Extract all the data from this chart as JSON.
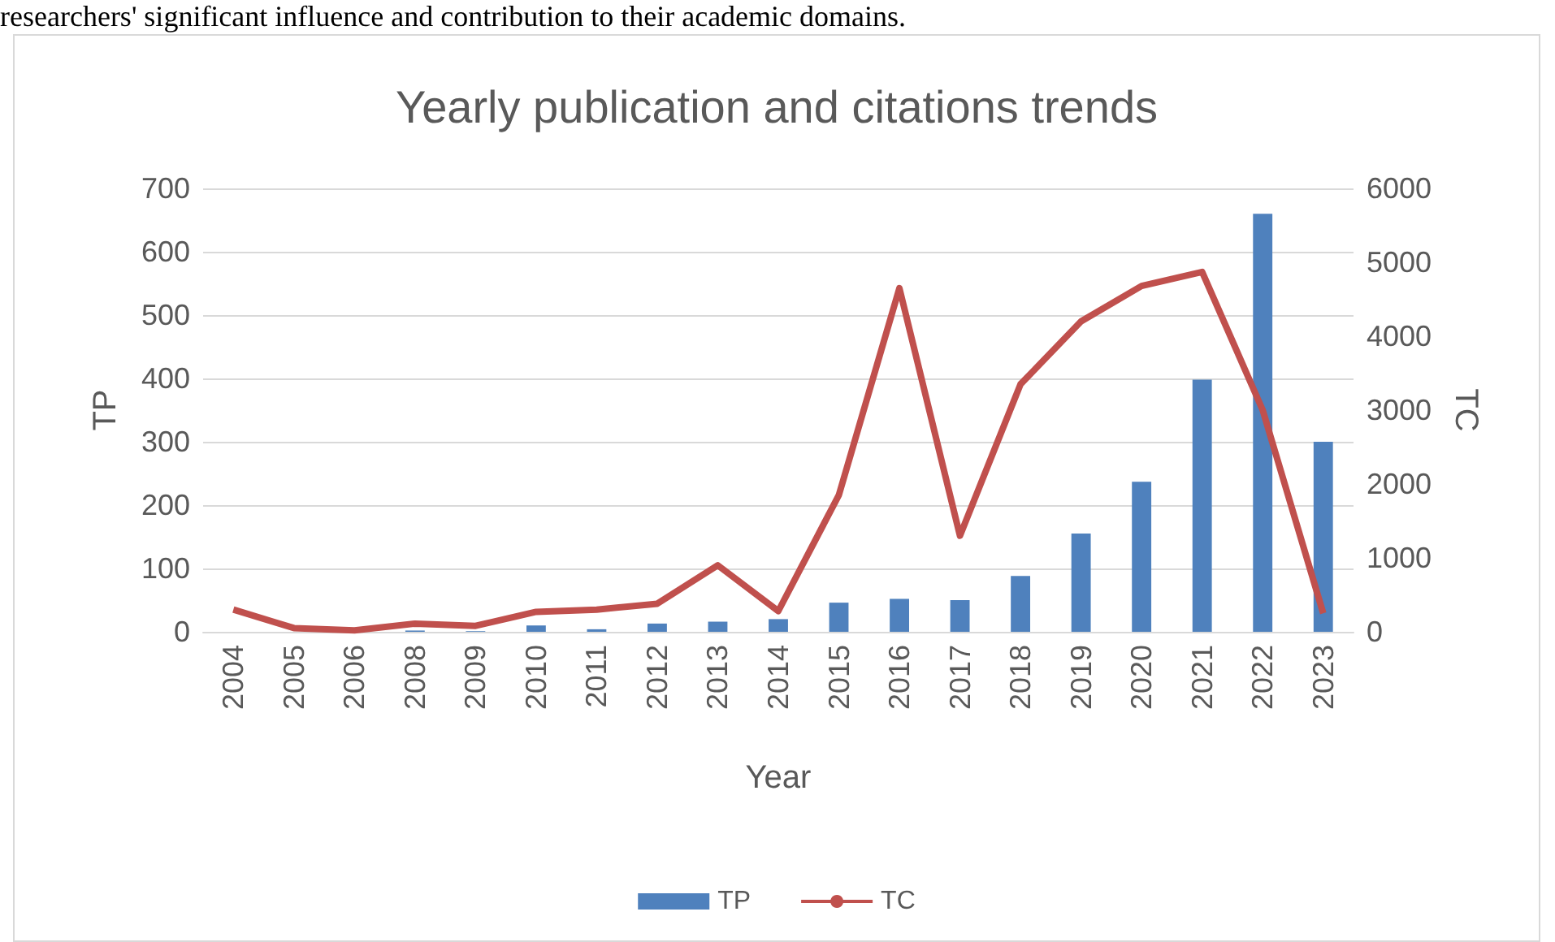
{
  "chart_data": {
    "type": "bar",
    "title": "Yearly publication and citations trends",
    "xlabel": "Year",
    "ylabel": "TP",
    "y2label": "TC",
    "annotations": [
      "researchers' significant influence and contribution to their academic domains."
    ],
    "categories": [
      "2004",
      "2005",
      "2006",
      "2008",
      "2009",
      "2010",
      "2011",
      "2012",
      "2013",
      "2014",
      "2015",
      "2016",
      "2017",
      "2018",
      "2019",
      "2020",
      "2021",
      "2022",
      "2023"
    ],
    "series": [
      {
        "name": "TP",
        "color": "#4f81bd",
        "values": [
          0,
          0,
          0,
          2,
          1,
          10,
          4,
          13,
          16,
          20,
          46,
          52,
          50,
          88,
          155,
          237,
          398,
          660,
          300
        ]
      },
      {
        "name": "TC",
        "type": "line",
        "axis": "y2",
        "color": "#c0504d",
        "marker": "none",
        "values": [
          300,
          50,
          20,
          110,
          80,
          270,
          300,
          380,
          900,
          280,
          1850,
          4650,
          1300,
          3350,
          4200,
          4680,
          4870,
          3000,
          250
        ]
      }
    ],
    "ylim": [
      0,
      700
    ],
    "yticks": [
      0,
      100,
      200,
      300,
      400,
      500,
      600,
      700
    ],
    "y2lim": [
      0,
      6000
    ],
    "y2ticks": [
      0,
      1000,
      2000,
      3000,
      4000,
      5000,
      6000
    ],
    "grid": "y",
    "legend": "bottom"
  }
}
